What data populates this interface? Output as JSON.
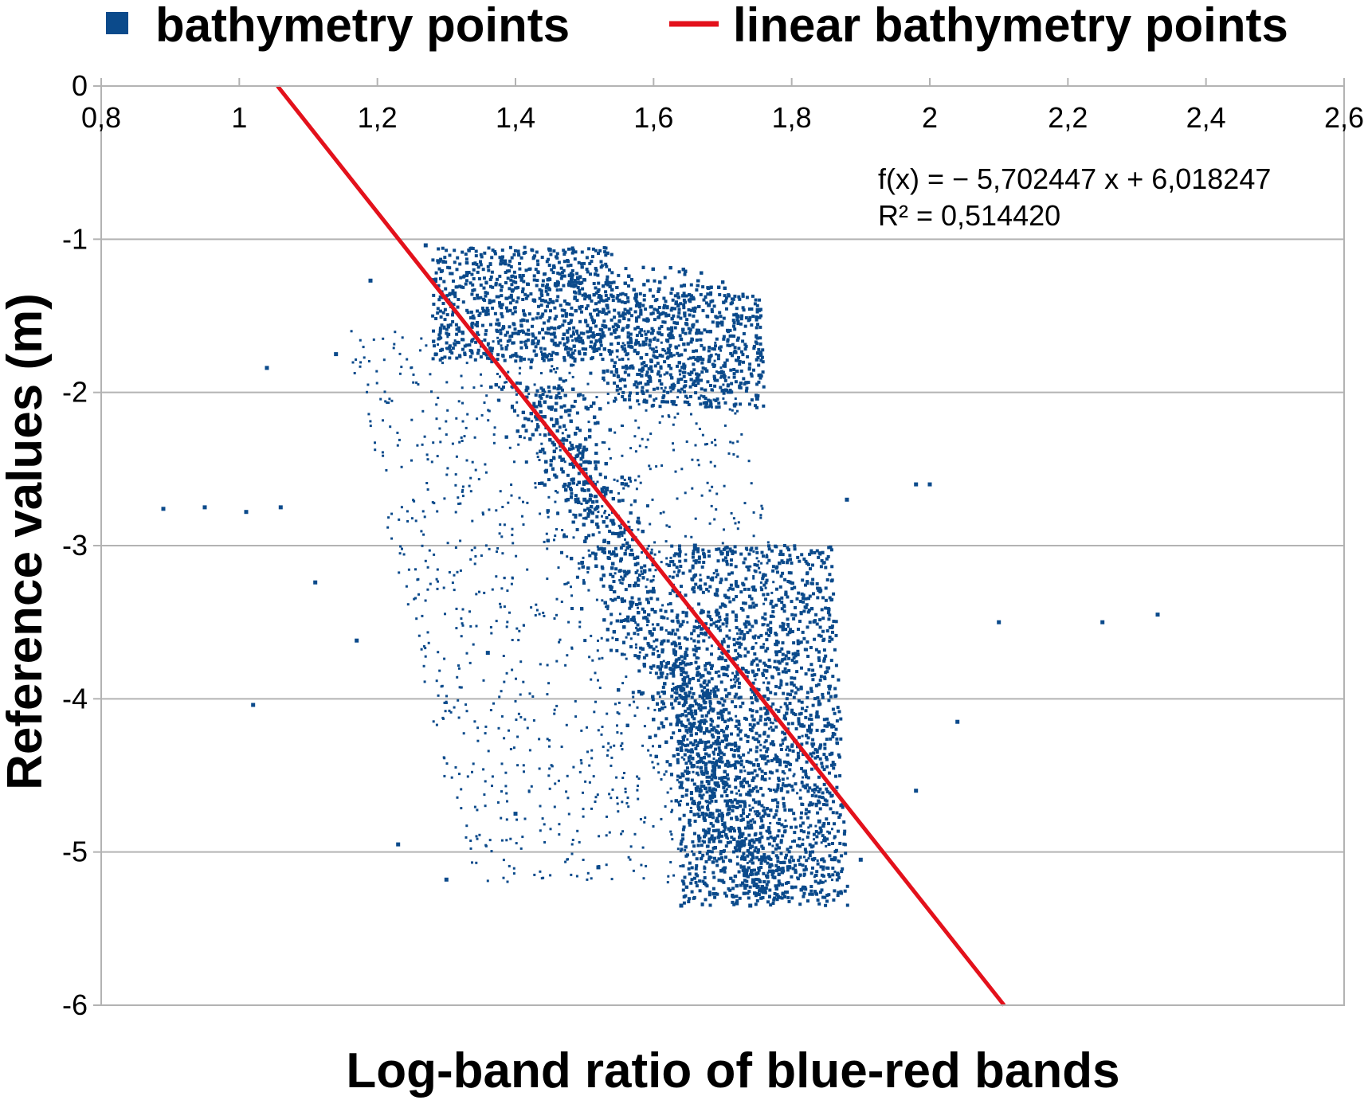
{
  "chart_data": {
    "type": "scatter",
    "title": "",
    "xlabel": "Log-band ratio of blue-red bands",
    "ylabel": "Reference values (m)",
    "xlim": [
      0.8,
      2.6
    ],
    "ylim": [
      -6,
      0
    ],
    "x_ticks": [
      "0,8",
      "1",
      "1,2",
      "1,4",
      "1,6",
      "1,8",
      "2",
      "2,2",
      "2,4",
      "2,6"
    ],
    "y_ticks": [
      "0",
      "-1",
      "-2",
      "-3",
      "-4",
      "-5",
      "-6"
    ],
    "x_axis_position": "top",
    "grid": "horizontal",
    "legend_position": "top",
    "series": [
      {
        "name": "bathymetry points",
        "kind": "scatter",
        "color": "#0b4a8b",
        "marker": "square",
        "description_points": [
          [
            0.89,
            -2.76
          ],
          [
            0.95,
            -2.75
          ],
          [
            1.01,
            -2.78
          ],
          [
            1.04,
            -1.84
          ],
          [
            1.02,
            -4.04
          ],
          [
            1.06,
            -2.75
          ],
          [
            1.11,
            -3.24
          ],
          [
            1.14,
            -1.75
          ],
          [
            1.17,
            -3.62
          ],
          [
            1.19,
            -1.27
          ],
          [
            1.23,
            -4.95
          ],
          [
            1.27,
            -1.04
          ],
          [
            1.3,
            -5.18
          ],
          [
            1.33,
            -1.22
          ],
          [
            1.45,
            -1.07
          ],
          [
            1.55,
            -1.4
          ],
          [
            1.68,
            -1.43
          ],
          [
            1.75,
            -2.04
          ],
          [
            1.88,
            -2.7
          ],
          [
            1.98,
            -2.6
          ],
          [
            2.0,
            -2.6
          ],
          [
            2.1,
            -3.5
          ],
          [
            2.25,
            -3.5
          ],
          [
            2.33,
            -3.45
          ],
          [
            2.04,
            -4.15
          ],
          [
            1.98,
            -4.6
          ],
          [
            1.9,
            -5.05
          ],
          [
            1.74,
            -5.35
          ],
          [
            1.64,
            -5.35
          ],
          [
            1.52,
            -5.1
          ],
          [
            1.4,
            -4.75
          ],
          [
            1.36,
            -3.7
          ],
          [
            1.5,
            -2.7
          ],
          [
            1.6,
            -3.3
          ],
          [
            1.7,
            -3.8
          ],
          [
            1.78,
            -4.4
          ],
          [
            1.84,
            -4.8
          ],
          [
            1.46,
            -2.2
          ],
          [
            1.56,
            -2.6
          ],
          [
            1.66,
            -3.0
          ],
          [
            1.74,
            -3.4
          ],
          [
            1.8,
            -3.9
          ]
        ]
      },
      {
        "name": "linear bathymetry points",
        "kind": "line",
        "color": "#e3111b",
        "slope": -5.702447,
        "intercept": 6.018247,
        "x": [
          1.0554,
          2.1076
        ],
        "y": [
          0,
          -6
        ]
      }
    ],
    "annotations": [
      "f(x) = − 5,702447 x + 6,018247",
      "R² = 0,514420"
    ]
  }
}
